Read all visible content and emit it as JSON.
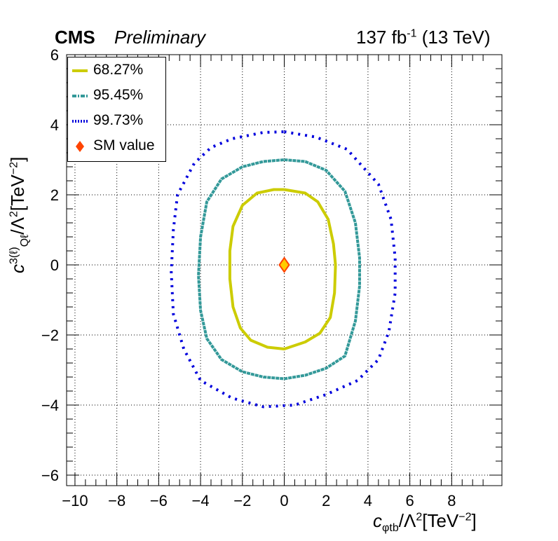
{
  "header": {
    "experiment": "CMS",
    "status": "Preliminary",
    "lumi_value": "137 fb",
    "lumi_exp": "-1",
    "energy": " (13 TeV)"
  },
  "axes": {
    "x_label_main": "c",
    "x_label_sub": "φtb",
    "x_label_rest": "/Λ",
    "x_label_sup": "2",
    "x_label_unit": "[TeV",
    "x_label_unit_sup": "−2",
    "x_label_close": "]",
    "y_label_main": "c",
    "y_label_sup1": "3(ℓ)",
    "y_label_sub": "Qℓ",
    "y_label_rest": "/Λ",
    "y_label_sup": "2",
    "y_label_unit": "[TeV",
    "y_label_unit_sup": "−2",
    "y_label_close": "]"
  },
  "legend": [
    {
      "label": "68.27%",
      "color": "#cccc00",
      "style": "solid"
    },
    {
      "label": "95.45%",
      "color": "#339999",
      "style": "dashdot"
    },
    {
      "label": "99.73%",
      "color": "#0000dd",
      "style": "dotted"
    },
    {
      "label": "SM value",
      "color": "#ff4400",
      "style": "diamond"
    }
  ],
  "chart_data": {
    "type": "scatter",
    "xlim": [
      -10.4,
      10.4
    ],
    "ylim": [
      -6.3,
      6.0
    ],
    "x_ticks": [
      -10,
      -8,
      -6,
      -4,
      -2,
      0,
      2,
      4,
      6,
      8
    ],
    "x_tick_labels": [
      "−10",
      "−8",
      "−6",
      "−4",
      "−2",
      "0",
      "2",
      "4",
      "6",
      "8"
    ],
    "y_ticks": [
      -6,
      -4,
      -2,
      0,
      2,
      4,
      6
    ],
    "y_tick_labels": [
      "−6",
      "−4",
      "−2",
      "0",
      "2",
      "4",
      "6"
    ],
    "grid": true,
    "legend_position": "top-left",
    "sm_point": {
      "x": 0,
      "y": 0
    },
    "series": [
      {
        "name": "68.27%",
        "color": "#cccc00",
        "points": [
          [
            0,
            2.15
          ],
          [
            1.0,
            2.05
          ],
          [
            1.6,
            1.8
          ],
          [
            2.1,
            1.3
          ],
          [
            2.35,
            0.6
          ],
          [
            2.45,
            0
          ],
          [
            2.4,
            -0.8
          ],
          [
            2.2,
            -1.5
          ],
          [
            1.7,
            -1.95
          ],
          [
            1.0,
            -2.2
          ],
          [
            0,
            -2.4
          ],
          [
            -0.8,
            -2.35
          ],
          [
            -1.6,
            -2.15
          ],
          [
            -2.1,
            -1.8
          ],
          [
            -2.45,
            -1.2
          ],
          [
            -2.6,
            -0.4
          ],
          [
            -2.6,
            0.4
          ],
          [
            -2.45,
            1.1
          ],
          [
            -2.0,
            1.7
          ],
          [
            -1.3,
            2.05
          ],
          [
            -0.5,
            2.15
          ],
          [
            0,
            2.15
          ]
        ]
      },
      {
        "name": "95.45%",
        "color": "#339999",
        "points": [
          [
            0,
            3.0
          ],
          [
            1.0,
            2.95
          ],
          [
            2.0,
            2.7
          ],
          [
            2.9,
            2.1
          ],
          [
            3.4,
            1.2
          ],
          [
            3.6,
            0.2
          ],
          [
            3.6,
            -0.6
          ],
          [
            3.4,
            -1.6
          ],
          [
            2.9,
            -2.6
          ],
          [
            2.0,
            -2.95
          ],
          [
            1.0,
            -3.15
          ],
          [
            0,
            -3.25
          ],
          [
            -1.0,
            -3.2
          ],
          [
            -2.0,
            -3.05
          ],
          [
            -3.0,
            -2.7
          ],
          [
            -3.7,
            -2.1
          ],
          [
            -4.0,
            -1.3
          ],
          [
            -4.1,
            -0.3
          ],
          [
            -4.0,
            0.8
          ],
          [
            -3.7,
            1.8
          ],
          [
            -3.0,
            2.45
          ],
          [
            -2.0,
            2.8
          ],
          [
            -1.0,
            2.95
          ],
          [
            0,
            3.0
          ]
        ]
      },
      {
        "name": "99.73%",
        "color": "#0000dd",
        "points": [
          [
            0,
            3.8
          ],
          [
            1.5,
            3.65
          ],
          [
            3.0,
            3.3
          ],
          [
            4.5,
            2.3
          ],
          [
            5.1,
            1.3
          ],
          [
            5.3,
            0.2
          ],
          [
            5.3,
            -0.8
          ],
          [
            5.0,
            -1.9
          ],
          [
            4.5,
            -2.7
          ],
          [
            3.5,
            -3.3
          ],
          [
            2.0,
            -3.7
          ],
          [
            0.5,
            -4.0
          ],
          [
            -1.0,
            -4.05
          ],
          [
            -2.5,
            -3.8
          ],
          [
            -4.0,
            -3.3
          ],
          [
            -4.8,
            -2.4
          ],
          [
            -5.3,
            -1.4
          ],
          [
            -5.4,
            -0.2
          ],
          [
            -5.3,
            1.0
          ],
          [
            -5.1,
            2.0
          ],
          [
            -4.3,
            2.9
          ],
          [
            -3.5,
            3.35
          ],
          [
            -2.5,
            3.6
          ],
          [
            -1.0,
            3.78
          ],
          [
            0,
            3.8
          ]
        ]
      }
    ]
  }
}
